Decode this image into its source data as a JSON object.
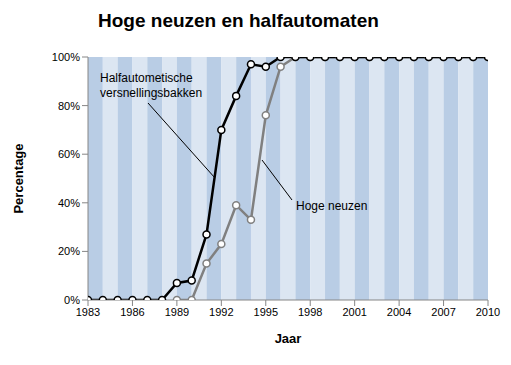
{
  "chart_data": {
    "type": "line",
    "title": "Hoge neuzen en halfautomaten",
    "x_label": "Jaar",
    "y_label": "Percentage",
    "x": [
      1983,
      1984,
      1985,
      1986,
      1987,
      1988,
      1989,
      1990,
      1991,
      1992,
      1993,
      1994,
      1995,
      1996,
      1997,
      1998,
      1999,
      2000,
      2001,
      2002,
      2003,
      2004,
      2005,
      2006,
      2007,
      2008,
      2009,
      2010
    ],
    "series": [
      {
        "name": "Halfautometische versnellingsbakken",
        "color": "#000000",
        "marker": "circle",
        "values": [
          0,
          0,
          0,
          0,
          0,
          0,
          7,
          8,
          27,
          70,
          84,
          97,
          96,
          100,
          100,
          100,
          100,
          100,
          100,
          100,
          100,
          100,
          100,
          100,
          100,
          100,
          100,
          100
        ]
      },
      {
        "name": "Hoge neuzen",
        "color": "#808080",
        "marker": "circle",
        "values": [
          null,
          null,
          null,
          null,
          null,
          null,
          0,
          0,
          15,
          23,
          39,
          33,
          76,
          96,
          100,
          100,
          100,
          100,
          100,
          100,
          100,
          100,
          100,
          100,
          100,
          100,
          100,
          100
        ]
      }
    ],
    "xlim": [
      1983,
      2010
    ],
    "xticks": [
      1983,
      1986,
      1989,
      1992,
      1995,
      1998,
      2001,
      2004,
      2007,
      2010
    ],
    "ylim": [
      0,
      100
    ],
    "yticks": [
      {
        "value": 0,
        "label": "0%"
      },
      {
        "value": 20,
        "label": "20%"
      },
      {
        "value": 40,
        "label": "40%"
      },
      {
        "value": 60,
        "label": "60%"
      },
      {
        "value": 80,
        "label": "80%"
      },
      {
        "value": 100,
        "label": "100%"
      }
    ],
    "grid": false
  }
}
